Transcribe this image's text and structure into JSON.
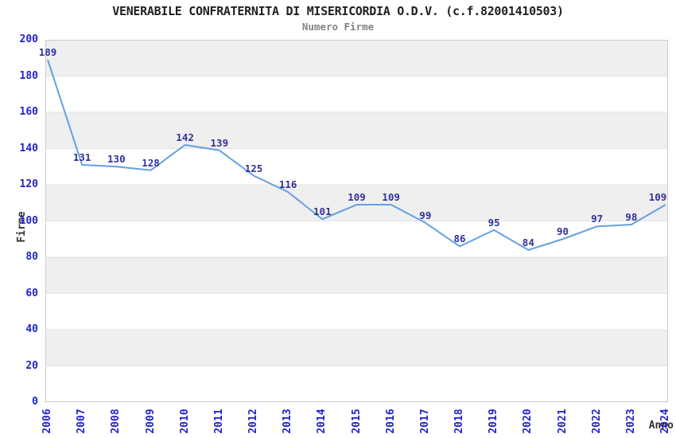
{
  "header": {
    "title": "VENERABILE CONFRATERNITA DI MISERICORDIA O.D.V. (c.f.82001410503)",
    "subtitle": "Numero Firme"
  },
  "chart_data": {
    "type": "line",
    "title": "VENERABILE CONFRATERNITA DI MISERICORDIA O.D.V. (c.f.82001410503)",
    "subtitle": "Numero Firme",
    "xlabel": "Anno",
    "ylabel": "Firme",
    "x": [
      "2006",
      "2007",
      "2008",
      "2009",
      "2010",
      "2011",
      "2012",
      "2013",
      "2014",
      "2015",
      "2016",
      "2017",
      "2018",
      "2019",
      "2020",
      "2021",
      "2022",
      "2023",
      "2024"
    ],
    "series": [
      {
        "name": "Numero Firme",
        "values": [
          189,
          131,
          130,
          128,
          142,
          139,
          125,
          116,
          101,
          109,
          109,
          99,
          86,
          95,
          84,
          90,
          97,
          98,
          109
        ]
      }
    ],
    "ylim": [
      0,
      200
    ],
    "ytick_step": 20,
    "grid": true,
    "background_bands": "alternating gray/white every 20 units",
    "legend": "none",
    "point_labels": true,
    "colors": {
      "line": "#64a0e0",
      "value_label": "#31319c",
      "tick_label": "#2222cc",
      "band_fill": "#efefef",
      "gridline": "#e3e3e3",
      "plot_border": "#cccccc",
      "title": "#1f1f1f",
      "subtitle": "#848484",
      "axis_title": "#333333"
    }
  }
}
